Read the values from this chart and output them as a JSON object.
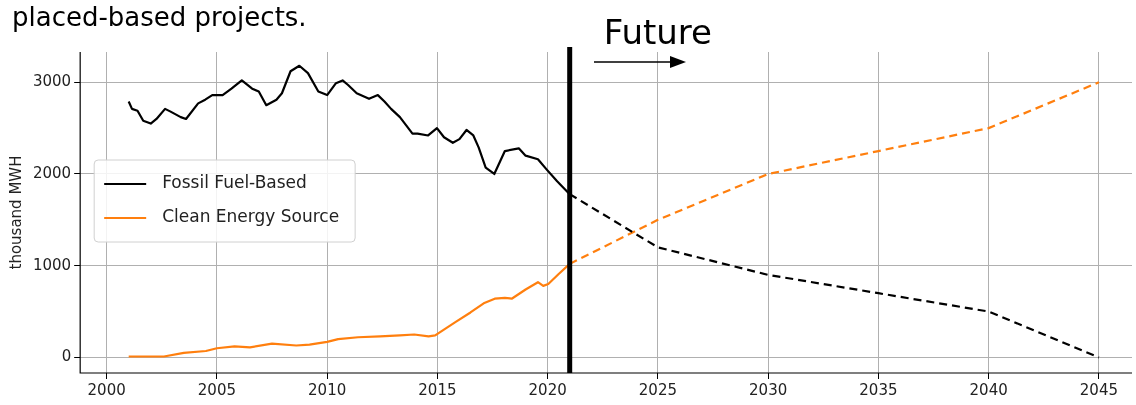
{
  "chart_data": {
    "type": "line",
    "ylabel": "thousand MWH",
    "xlim": [
      1998.8,
      2046.5
    ],
    "ylim": [
      -170,
      3330
    ],
    "xticks": [
      2000,
      2005,
      2010,
      2015,
      2020,
      2025,
      2030,
      2035,
      2040,
      2045
    ],
    "yticks": [
      0,
      1000,
      2000,
      3000
    ],
    "grid": true,
    "legend": "center left",
    "annotations": [
      "placed-based projects.",
      "Future"
    ],
    "ref_lines": [
      {
        "axis": "x",
        "value": 2021,
        "color": "#000000"
      }
    ],
    "series": [
      {
        "name": "Fossil Fuel-Based",
        "color": "#000000",
        "line_style": "solid",
        "x": [
          2001.0,
          2001.15,
          2001.4,
          2001.66,
          2002.0,
          2002.26,
          2002.65,
          2002.9,
          2003.36,
          2003.6,
          2004.15,
          2004.47,
          2004.79,
          2005.26,
          2005.66,
          2006.13,
          2006.6,
          2006.9,
          2007.24,
          2007.7,
          2007.95,
          2008.34,
          2008.74,
          2009.13,
          2009.6,
          2010.0,
          2010.4,
          2010.7,
          2010.95,
          2011.34,
          2011.9,
          2012.3,
          2012.6,
          2012.9,
          2013.3,
          2013.87,
          2014.1,
          2014.58,
          2014.98,
          2015.3,
          2015.7,
          2016.0,
          2016.32,
          2016.63,
          2016.87,
          2017.19,
          2017.58,
          2018.06,
          2018.69,
          2019.0,
          2019.56,
          2019.95,
          2020.43,
          2021.0
        ],
        "values": [
          2790,
          2710,
          2690,
          2580,
          2550,
          2600,
          2710,
          2680,
          2620,
          2600,
          2770,
          2810,
          2860,
          2860,
          2930,
          3020,
          2930,
          2900,
          2750,
          2810,
          2880,
          3120,
          3180,
          3100,
          2900,
          2860,
          2990,
          3020,
          2970,
          2880,
          2820,
          2860,
          2790,
          2710,
          2620,
          2440,
          2440,
          2420,
          2500,
          2400,
          2340,
          2380,
          2480,
          2420,
          2290,
          2070,
          2000,
          2250,
          2280,
          2200,
          2160,
          2050,
          1920,
          1780
        ]
      },
      {
        "name": "Clean Energy Source",
        "color": "#ff7f0e",
        "line_style": "solid",
        "x": [
          2001.0,
          2002.6,
          2003.5,
          2004.5,
          2005.0,
          2005.8,
          2006.5,
          2007.5,
          2008.6,
          2009.2,
          2010.0,
          2010.5,
          2011.4,
          2012.4,
          2013.3,
          2013.95,
          2014.6,
          2014.9,
          2015.4,
          2015.85,
          2016.5,
          2017.1,
          2017.6,
          2018.06,
          2018.37,
          2019.0,
          2019.56,
          2019.8,
          2020.03,
          2020.5,
          2021.0
        ],
        "values": [
          10,
          10,
          50,
          70,
          100,
          120,
          110,
          150,
          130,
          140,
          170,
          200,
          220,
          230,
          240,
          250,
          230,
          240,
          320,
          390,
          490,
          590,
          640,
          650,
          640,
          740,
          820,
          780,
          800,
          910,
          1020
        ]
      },
      {
        "color": "#000000",
        "line_style": "dashed",
        "x": [
          2021,
          2025,
          2030,
          2035,
          2040,
          2045
        ],
        "values": [
          1780,
          1200,
          900,
          700,
          500,
          0
        ]
      },
      {
        "color": "#ff7f0e",
        "line_style": "dashed",
        "x": [
          2021,
          2025,
          2030,
          2035,
          2040,
          2045
        ],
        "values": [
          1020,
          1500,
          2000,
          2250,
          2500,
          3000
        ]
      }
    ]
  }
}
